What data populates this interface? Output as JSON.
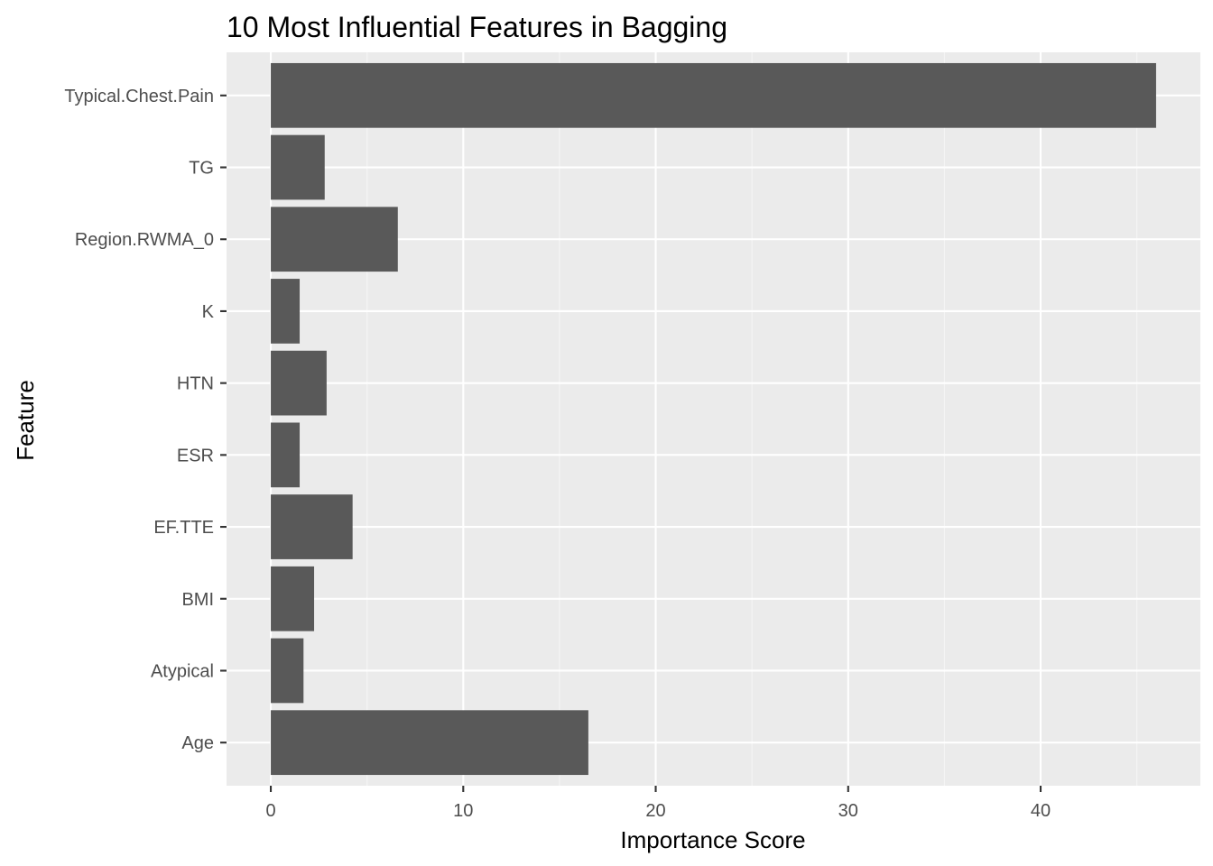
{
  "chart_data": {
    "type": "bar",
    "orientation": "horizontal",
    "title": "10 Most Influential Features in Bagging",
    "xlabel": "Importance Score",
    "ylabel": "Feature",
    "categories": [
      "Age",
      "Atypical",
      "BMI",
      "EF.TTE",
      "ESR",
      "HTN",
      "K",
      "Region.RWMA_0",
      "TG",
      "Typical.Chest.Pain"
    ],
    "values": [
      16.5,
      1.7,
      2.25,
      4.25,
      1.5,
      2.9,
      1.5,
      6.6,
      2.8,
      46.0
    ],
    "xlim": [
      -2.3,
      48.3
    ],
    "xticks": [
      0,
      10,
      20,
      30,
      40
    ],
    "xtick_labels": [
      "0",
      "10",
      "20",
      "30",
      "40"
    ],
    "grid": true,
    "legend": "none",
    "colors": {
      "panel_background": "#ebebeb",
      "grid_major": "#ffffff",
      "grid_minor": "#f5f5f5",
      "bar_fill": "#595959",
      "tick_mark": "#333333",
      "tick_text": "#4d4d4d",
      "title_text": "#000000"
    }
  }
}
